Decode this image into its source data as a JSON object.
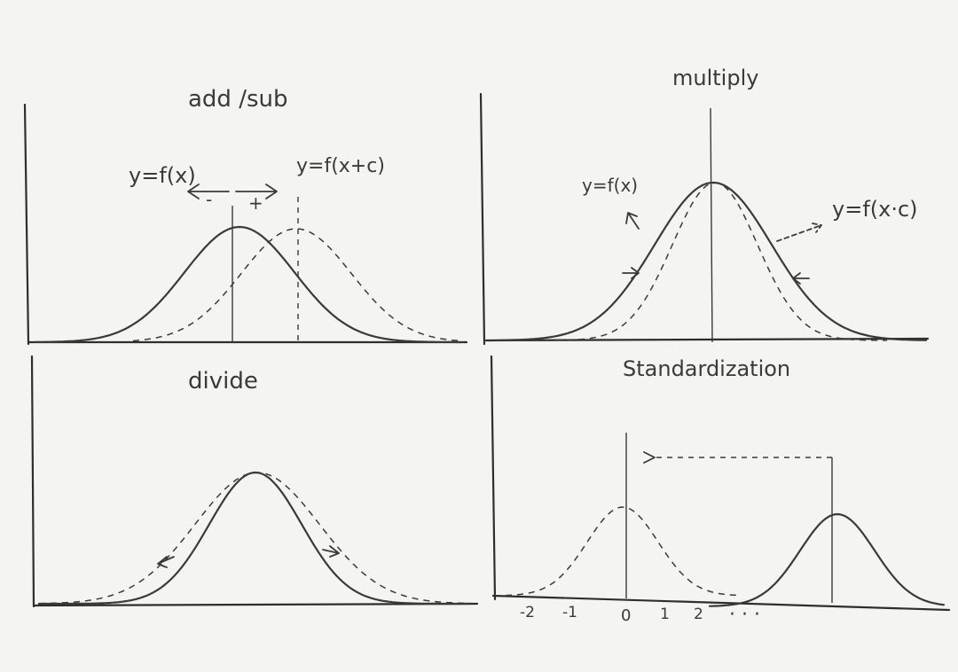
{
  "panels": {
    "add_sub": {
      "title": "add /sub",
      "label_left": "y=f(x)",
      "label_right": "y=f(x+c)",
      "sign_left": "-",
      "sign_right": "+"
    },
    "multiply": {
      "title": "multiply",
      "label_left": "y=f(x)",
      "label_right": "y=f(x·c)"
    },
    "divide": {
      "title": "divide"
    },
    "standardization": {
      "title": "Standardization",
      "ticks": [
        "-2",
        "-1",
        "0",
        "1",
        "2"
      ],
      "ellipsis": "· · ·"
    }
  }
}
